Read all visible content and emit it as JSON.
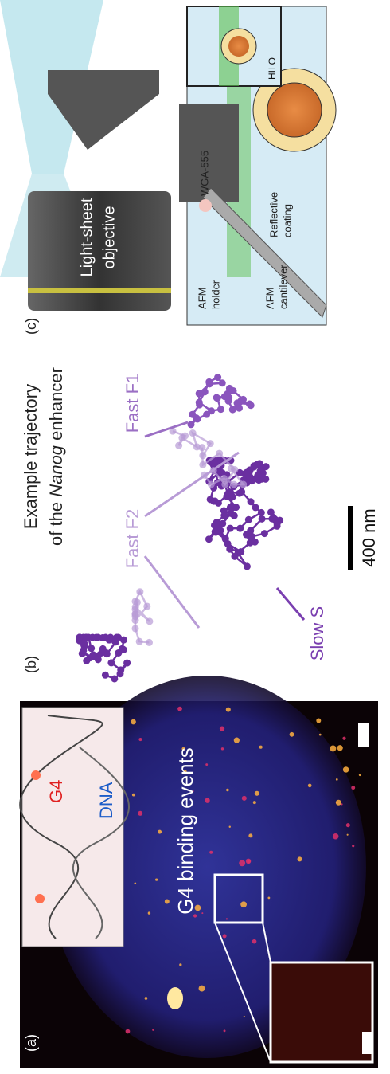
{
  "panels": {
    "a": "(a)",
    "b": "(b)",
    "c": "(c)"
  },
  "panel_a": {
    "inset_labels": {
      "g4": "G4",
      "dna": "DNA"
    },
    "caption": "G4 binding events"
  },
  "panel_b": {
    "title_line1": "Example trajectory",
    "title_line2": {
      "pre": "of the",
      "gene": "Nanog",
      "post": "enhancer"
    },
    "labels": {
      "fast_f1": "Fast F1",
      "fast_f2": "Fast F2",
      "slow_s": "Slow S"
    },
    "scale_bar": "400 nm"
  },
  "panel_c": {
    "objective": {
      "line1": "Light-sheet",
      "line2": "objective"
    },
    "afm_holder": {
      "line1": "AFM",
      "line2": "holder"
    },
    "afm_cantilever": {
      "line1": "AFM",
      "line2": "cantilever"
    },
    "reflective_coating": {
      "line1": "Reflective",
      "line2": "coating"
    },
    "wga": "WGA-555",
    "hilo": "HILO"
  }
}
